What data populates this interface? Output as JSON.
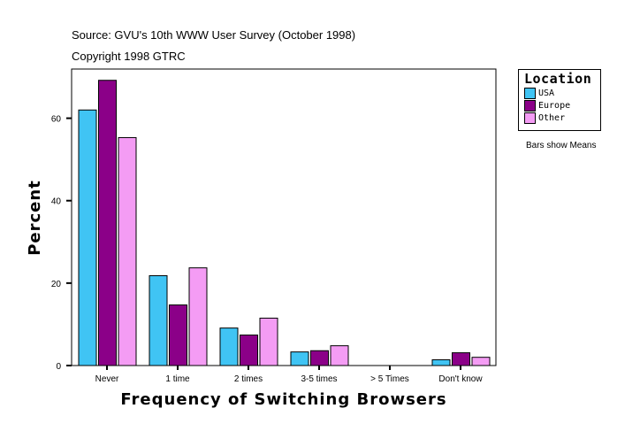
{
  "header": {
    "source": "Source: GVU's 10th WWW User Survey (October 1998)",
    "copyright": "Copyright 1998 GTRC"
  },
  "chart_data": {
    "type": "bar",
    "title": "",
    "xlabel": "Frequency of Switching Browsers",
    "ylabel": "Percent",
    "categories": [
      "Never",
      "1 time",
      "2 times",
      "3-5 times",
      "> 5 Times",
      "Don't know"
    ],
    "series": [
      {
        "name": "USA",
        "color": "#40c4f4",
        "values": [
          62.0,
          21.8,
          9.1,
          3.3,
          0,
          1.4
        ]
      },
      {
        "name": "Europe",
        "color": "#8b0088",
        "values": [
          69.2,
          14.7,
          7.4,
          3.6,
          0,
          3.1
        ]
      },
      {
        "name": "Other",
        "color": "#f49cf4",
        "values": [
          55.3,
          23.7,
          11.5,
          4.8,
          0,
          2.0
        ]
      }
    ],
    "yticks": [
      "0",
      "20",
      "40",
      "60"
    ],
    "ylim": [
      0,
      72
    ],
    "grid": false,
    "legend": {
      "title": "Location",
      "placement": "right"
    },
    "annotation": "Bars show Means"
  }
}
